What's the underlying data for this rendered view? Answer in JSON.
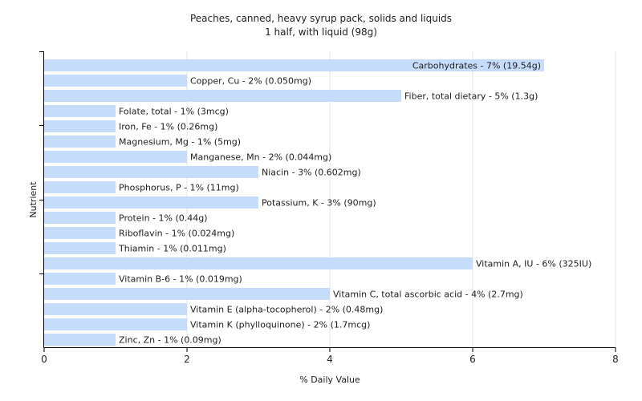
{
  "chart_data": {
    "type": "bar",
    "orientation": "horizontal",
    "title": "Peaches, canned, heavy syrup pack, solids and liquids",
    "subtitle": "1 half, with liquid (98g)",
    "xlabel": "% Daily Value",
    "ylabel": "Nutrient",
    "xlim": [
      0,
      8
    ],
    "xticks": [
      "0",
      "2",
      "4",
      "6",
      "8"
    ],
    "grid": true,
    "bar_color": "#c6dcfb",
    "categories": [
      "Carbohydrates",
      "Copper, Cu",
      "Fiber, total dietary",
      "Folate, total",
      "Iron, Fe",
      "Magnesium, Mg",
      "Manganese, Mn",
      "Niacin",
      "Phosphorus, P",
      "Potassium, K",
      "Protein",
      "Riboflavin",
      "Thiamin",
      "Vitamin A, IU",
      "Vitamin B-6",
      "Vitamin C, total ascorbic acid",
      "Vitamin E (alpha-tocopherol)",
      "Vitamin K (phylloquinone)",
      "Zinc, Zn"
    ],
    "values": [
      7,
      2,
      5,
      1,
      1,
      1,
      2,
      3,
      1,
      3,
      1,
      1,
      1,
      6,
      1,
      4,
      2,
      2,
      1
    ],
    "labels": [
      "Carbohydrates - 7% (19.54g)",
      "Copper, Cu - 2% (0.050mg)",
      "Fiber, total dietary - 5% (1.3g)",
      "Folate, total - 1% (3mcg)",
      "Iron, Fe - 1% (0.26mg)",
      "Magnesium, Mg - 1% (5mg)",
      "Manganese, Mn - 2% (0.044mg)",
      "Niacin - 3% (0.602mg)",
      "Phosphorus, P - 1% (11mg)",
      "Potassium, K - 3% (90mg)",
      "Protein - 1% (0.44g)",
      "Riboflavin - 1% (0.024mg)",
      "Thiamin - 1% (0.011mg)",
      "Vitamin A, IU - 6% (325IU)",
      "Vitamin B-6 - 1% (0.019mg)",
      "Vitamin C, total ascorbic acid - 4% (2.7mg)",
      "Vitamin E (alpha-tocopherol) - 2% (0.48mg)",
      "Vitamin K (phylloquinone) - 2% (1.7mcg)",
      "Zinc, Zn - 1% (0.09mg)"
    ]
  }
}
